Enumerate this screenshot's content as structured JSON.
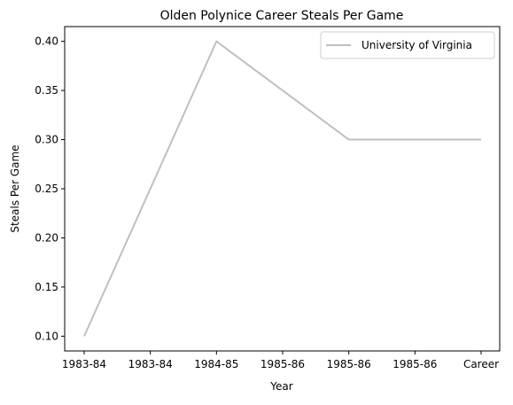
{
  "chart_data": {
    "type": "line",
    "title": "Olden Polynice Career Steals Per Game",
    "xlabel": "Year",
    "ylabel": "Steals Per Game",
    "categories": [
      "1983-84",
      "1983-84",
      "1984-85",
      "1985-86",
      "1985-86",
      "1985-86",
      "Career"
    ],
    "series": [
      {
        "name": "University of Virginia",
        "values": [
          0.1,
          0.25,
          0.4,
          0.35,
          0.3,
          0.3,
          0.3
        ],
        "color": "#bfbfbf"
      }
    ],
    "ylim": [
      0.085,
      0.415
    ],
    "yticks": [
      0.1,
      0.15,
      0.2,
      0.25,
      0.3,
      0.35,
      0.4
    ],
    "ytick_labels": [
      "0.10",
      "0.15",
      "0.20",
      "0.25",
      "0.30",
      "0.35",
      "0.40"
    ],
    "grid": false,
    "legend_position": "top-right"
  }
}
